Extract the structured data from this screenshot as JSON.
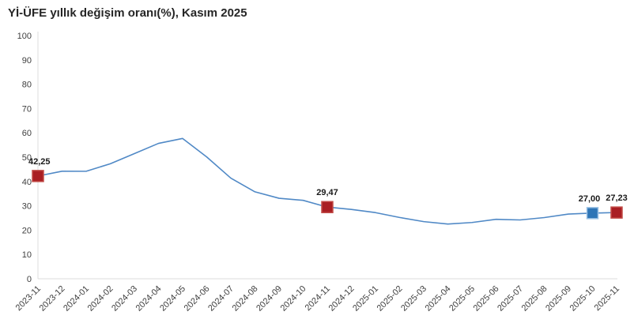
{
  "title": "Yİ-ÜFE yıllık değişim oranı(%), Kasım 2025",
  "colors": {
    "line": "#5089C6",
    "marker_red": "#A91E23",
    "marker_red_border": "#C24B47",
    "marker_blue": "#2E75B6",
    "marker_blue_border": "#9CC2E5",
    "axis": "#DCDCDC",
    "tick_text": "#404040",
    "label_text": "#1A1A1A",
    "title_text": "#262626"
  },
  "chart_data": {
    "type": "line",
    "title": "Yİ-ÜFE yıllık değişim oranı(%), Kasım 2025",
    "xlabel": "",
    "ylabel": "",
    "grid": false,
    "legend": null,
    "ylim": [
      0,
      100
    ],
    "yticks": [
      0,
      10,
      20,
      30,
      40,
      50,
      60,
      70,
      80,
      90,
      100
    ],
    "categories": [
      "2023-11",
      "2023-12",
      "2024-01",
      "2024-02",
      "2024-03",
      "2024-04",
      "2024-05",
      "2024-06",
      "2024-07",
      "2024-08",
      "2024-09",
      "2024-10",
      "2024-11",
      "2024-12",
      "2025-01",
      "2025-02",
      "2025-03",
      "2025-04",
      "2025-05",
      "2025-06",
      "2025-07",
      "2025-08",
      "2025-09",
      "2025-10",
      "2025-11"
    ],
    "values": [
      42.25,
      44.22,
      44.2,
      47.29,
      51.47,
      55.66,
      57.68,
      50.09,
      41.37,
      35.75,
      33.09,
      32.24,
      29.47,
      28.52,
      27.2,
      25.21,
      23.5,
      22.5,
      23.13,
      24.45,
      24.19,
      25.16,
      26.59,
      27.0,
      27.23
    ],
    "annotations": [
      {
        "index": 0,
        "category": "2023-11",
        "label": "42,25",
        "marker": "red",
        "anchor": "start",
        "dx": -12
      },
      {
        "index": 12,
        "category": "2024-11",
        "label": "29,47",
        "marker": "red",
        "anchor": "middle",
        "dx": 0
      },
      {
        "index": 23,
        "category": "2025-10",
        "label": "27,00",
        "marker": "blue",
        "anchor": "middle",
        "dx": -4
      },
      {
        "index": 24,
        "category": "2025-11",
        "label": "27,23",
        "marker": "red",
        "anchor": "middle",
        "dx": 0
      }
    ]
  }
}
